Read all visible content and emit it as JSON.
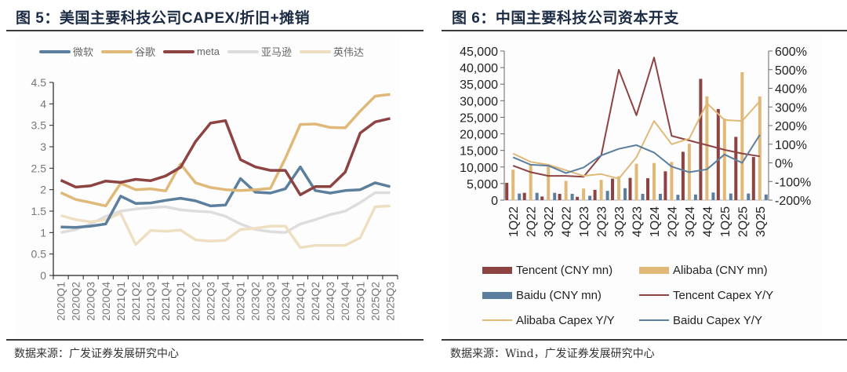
{
  "left": {
    "title": "图 5：美国主要科技公司CAPEX/折旧+摊销",
    "source": "数据来源：广发证券发展研究中心",
    "legend": [
      {
        "label": "微软",
        "color": "#5b7f9c"
      },
      {
        "label": "谷歌",
        "color": "#e0b978"
      },
      {
        "label": "meta",
        "color": "#8e4343"
      },
      {
        "label": "亚马逊",
        "color": "#dddddd"
      },
      {
        "label": "英伟达",
        "color": "#efdfc2"
      }
    ],
    "y_ticks": [
      "0",
      "0.5",
      "1",
      "1.5",
      "2",
      "2.5",
      "3",
      "3.5",
      "4",
      "4.5"
    ]
  },
  "right": {
    "title": "图 6：中国主要科技公司资本开支",
    "source": "数据来源：Wind，广发证券发展研究中心",
    "y_left_ticks": [
      "0",
      "5,000",
      "10,000",
      "15,000",
      "20,000",
      "25,000",
      "30,000",
      "35,000",
      "40,000",
      "45,000"
    ],
    "y_right_ticks": [
      "-200%",
      "-100%",
      "0%",
      "100%",
      "200%",
      "300%",
      "400%",
      "500%",
      "600%"
    ],
    "legend": [
      {
        "label": "Tencent (CNY mn)",
        "type": "bar",
        "color": "#8e4343"
      },
      {
        "label": "Alibaba (CNY mn)",
        "type": "bar",
        "color": "#e0b978"
      },
      {
        "label": "Baidu (CNY mn)",
        "type": "bar",
        "color": "#5b7f9c"
      },
      {
        "label": "Tencent Capex Y/Y",
        "type": "line",
        "color": "#8e4343"
      },
      {
        "label": "Alibaba Capex Y/Y",
        "type": "line",
        "color": "#e0b978"
      },
      {
        "label": "Baidu Capex Y/Y",
        "type": "line",
        "color": "#5b7f9c"
      }
    ]
  },
  "chart_data": [
    {
      "type": "line",
      "title": "图 5：美国主要科技公司CAPEX/折旧+摊销",
      "xlabel": "",
      "ylabel": "",
      "ylim": [
        0,
        4.5
      ],
      "grid": false,
      "legend_position": "top",
      "categories": [
        "2020Q1",
        "2020Q2",
        "2020Q3",
        "2020Q4",
        "2021Q1",
        "2021Q2",
        "2021Q3",
        "2021Q4",
        "2022Q1",
        "2022Q2",
        "2022Q3",
        "2022Q4",
        "2023Q1",
        "2023Q2",
        "2023Q3",
        "2023Q4",
        "2024Q1",
        "2024Q2",
        "2024Q3",
        "2024Q4",
        "2025Q1",
        "2025Q2",
        "2025Q3"
      ],
      "series": [
        {
          "name": "微软",
          "color": "#5b7f9c",
          "values": [
            1.13,
            1.12,
            1.15,
            1.2,
            1.85,
            1.68,
            1.69,
            1.75,
            1.8,
            1.74,
            1.62,
            1.64,
            2.26,
            1.94,
            1.92,
            2.02,
            2.53,
            1.98,
            1.92,
            1.98,
            2.0,
            2.16,
            2.07
          ]
        },
        {
          "name": "谷歌",
          "color": "#e0b978",
          "values": [
            1.93,
            1.77,
            1.7,
            1.62,
            2.15,
            2.0,
            2.02,
            1.97,
            2.6,
            2.16,
            2.05,
            2.0,
            1.98,
            2.0,
            2.03,
            2.73,
            3.52,
            3.53,
            3.45,
            3.44,
            3.83,
            4.18,
            4.22
          ]
        },
        {
          "name": "meta",
          "color": "#8e4343",
          "values": [
            2.22,
            2.06,
            2.09,
            2.2,
            2.17,
            2.24,
            2.21,
            2.32,
            2.52,
            3.12,
            3.55,
            3.61,
            2.7,
            2.53,
            2.45,
            2.45,
            1.88,
            2.07,
            2.07,
            2.41,
            3.32,
            3.58,
            3.66
          ]
        },
        {
          "name": "亚马逊",
          "color": "#dddddd",
          "values": [
            1.0,
            1.07,
            1.2,
            1.38,
            1.5,
            1.55,
            1.58,
            1.6,
            1.53,
            1.5,
            1.48,
            1.38,
            1.2,
            1.07,
            1.02,
            1.0,
            1.2,
            1.3,
            1.42,
            1.5,
            1.7,
            1.93,
            1.93
          ]
        },
        {
          "name": "英伟达",
          "color": "#efdfc2",
          "values": [
            1.4,
            1.3,
            1.25,
            1.3,
            1.45,
            0.72,
            1.05,
            1.03,
            1.06,
            0.83,
            0.8,
            0.82,
            1.07,
            1.1,
            1.15,
            1.15,
            0.65,
            0.7,
            0.7,
            0.7,
            0.88,
            1.6,
            1.62
          ]
        }
      ]
    },
    {
      "type": "bar",
      "title": "图 6：中国主要科技公司资本开支",
      "xlabel": "",
      "ylabel": "CNY mn",
      "ylim": [
        0,
        45000
      ],
      "y2lim": [
        -200,
        600
      ],
      "y2label": "%",
      "grid": false,
      "legend_position": "bottom",
      "categories": [
        "1Q22",
        "2Q22",
        "3Q22",
        "4Q22",
        "1Q23",
        "2Q23",
        "3Q23",
        "4Q23",
        "1Q24",
        "2Q24",
        "3Q24",
        "4Q24",
        "1Q25",
        "2Q25",
        "3Q25"
      ],
      "series": [
        {
          "name": "Tencent (CNY mn)",
          "type": "bar",
          "axis": "left",
          "color": "#8e4343",
          "values": [
            5200,
            2200,
            1100,
            1900,
            1000,
            3100,
            6500,
            6700,
            6600,
            8700,
            14600,
            36600,
            27500,
            19100,
            13000
          ]
        },
        {
          "name": "Alibaba (CNY mn)",
          "type": "bar",
          "axis": "left",
          "color": "#e0b978",
          "values": [
            9200,
            10900,
            10500,
            5800,
            3500,
            6100,
            7200,
            11000,
            11200,
            11500,
            17000,
            31300,
            24600,
            38600,
            31300
          ]
        },
        {
          "name": "Baidu (CNY mn)",
          "type": "bar",
          "axis": "left",
          "color": "#5b7f9c",
          "values": [
            2000,
            2200,
            2200,
            1900,
            1300,
            2800,
            3600,
            1900,
            1900,
            1600,
            1700,
            2300,
            2000,
            2000,
            1700
          ]
        },
        {
          "name": "Tencent Capex Y/Y",
          "type": "line",
          "axis": "right",
          "color": "#8e4343",
          "values": [
            -15,
            -50,
            -70,
            -70,
            -75,
            40,
            500,
            255,
            565,
            145,
            120,
            95,
            70,
            50,
            35
          ]
        },
        {
          "name": "Alibaba Capex Y/Y",
          "type": "line",
          "axis": "right",
          "color": "#e0b978",
          "values": [
            50,
            5,
            -10,
            -40,
            -70,
            -60,
            -85,
            30,
            225,
            100,
            130,
            320,
            230,
            225,
            330
          ]
        },
        {
          "name": "Baidu Capex Y/Y",
          "type": "line",
          "axis": "right",
          "color": "#5b7f9c",
          "values": [
            30,
            -10,
            -15,
            -55,
            -25,
            40,
            75,
            95,
            55,
            -20,
            -50,
            -35,
            45,
            0,
            150
          ]
        }
      ]
    }
  ]
}
